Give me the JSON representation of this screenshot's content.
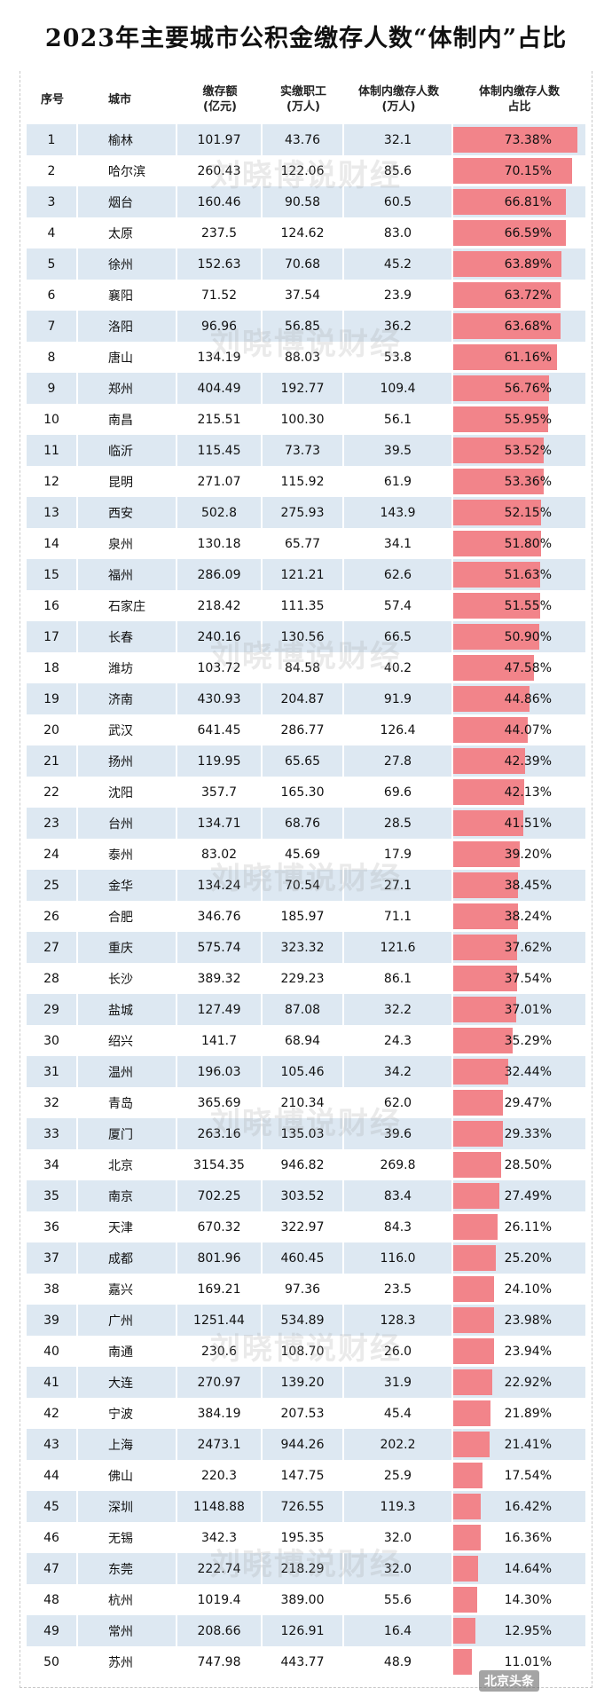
{
  "title": "2023年主要城市公积金缴存人数“体制内”占比",
  "headers": {
    "index": "序号",
    "city": "城市",
    "amount_line1": "缴存额",
    "amount_line2": "(亿元)",
    "workers_line1": "实缴职工",
    "workers_line2": "(万人)",
    "system_line1": "体制内缴存人数",
    "system_line2": "(万人)",
    "ratio_line1": "体制内缴存人数",
    "ratio_line2": "占比"
  },
  "watermark": "刘晓博说财经",
  "logo_text": "北京头条",
  "bar_color": "#f2848a",
  "stripe_color": "#dde8f2",
  "rows": [
    {
      "idx": "1",
      "city": "榆林",
      "amount": "101.97",
      "workers": "43.76",
      "system": "32.1",
      "ratio_text": "73.38%",
      "ratio": 73.38
    },
    {
      "idx": "2",
      "city": "哈尔滨",
      "amount": "260.43",
      "workers": "122.06",
      "system": "85.6",
      "ratio_text": "70.15%",
      "ratio": 70.15
    },
    {
      "idx": "3",
      "city": "烟台",
      "amount": "160.46",
      "workers": "90.58",
      "system": "60.5",
      "ratio_text": "66.81%",
      "ratio": 66.81
    },
    {
      "idx": "4",
      "city": "太原",
      "amount": "237.5",
      "workers": "124.62",
      "system": "83.0",
      "ratio_text": "66.59%",
      "ratio": 66.59
    },
    {
      "idx": "5",
      "city": "徐州",
      "amount": "152.63",
      "workers": "70.68",
      "system": "45.2",
      "ratio_text": "63.89%",
      "ratio": 63.89
    },
    {
      "idx": "6",
      "city": "襄阳",
      "amount": "71.52",
      "workers": "37.54",
      "system": "23.9",
      "ratio_text": "63.72%",
      "ratio": 63.72
    },
    {
      "idx": "7",
      "city": "洛阳",
      "amount": "96.96",
      "workers": "56.85",
      "system": "36.2",
      "ratio_text": "63.68%",
      "ratio": 63.68
    },
    {
      "idx": "8",
      "city": "唐山",
      "amount": "134.19",
      "workers": "88.03",
      "system": "53.8",
      "ratio_text": "61.16%",
      "ratio": 61.16
    },
    {
      "idx": "9",
      "city": "郑州",
      "amount": "404.49",
      "workers": "192.77",
      "system": "109.4",
      "ratio_text": "56.76%",
      "ratio": 56.76
    },
    {
      "idx": "10",
      "city": "南昌",
      "amount": "215.51",
      "workers": "100.30",
      "system": "56.1",
      "ratio_text": "55.95%",
      "ratio": 55.95
    },
    {
      "idx": "11",
      "city": "临沂",
      "amount": "115.45",
      "workers": "73.73",
      "system": "39.5",
      "ratio_text": "53.52%",
      "ratio": 53.52
    },
    {
      "idx": "12",
      "city": "昆明",
      "amount": "271.07",
      "workers": "115.92",
      "system": "61.9",
      "ratio_text": "53.36%",
      "ratio": 53.36
    },
    {
      "idx": "13",
      "city": "西安",
      "amount": "502.8",
      "workers": "275.93",
      "system": "143.9",
      "ratio_text": "52.15%",
      "ratio": 52.15
    },
    {
      "idx": "14",
      "city": "泉州",
      "amount": "130.18",
      "workers": "65.77",
      "system": "34.1",
      "ratio_text": "51.80%",
      "ratio": 51.8
    },
    {
      "idx": "15",
      "city": "福州",
      "amount": "286.09",
      "workers": "121.21",
      "system": "62.6",
      "ratio_text": "51.63%",
      "ratio": 51.63
    },
    {
      "idx": "16",
      "city": "石家庄",
      "amount": "218.42",
      "workers": "111.35",
      "system": "57.4",
      "ratio_text": "51.55%",
      "ratio": 51.55
    },
    {
      "idx": "17",
      "city": "长春",
      "amount": "240.16",
      "workers": "130.56",
      "system": "66.5",
      "ratio_text": "50.90%",
      "ratio": 50.9
    },
    {
      "idx": "18",
      "city": "潍坊",
      "amount": "103.72",
      "workers": "84.58",
      "system": "40.2",
      "ratio_text": "47.58%",
      "ratio": 47.58
    },
    {
      "idx": "19",
      "city": "济南",
      "amount": "430.93",
      "workers": "204.87",
      "system": "91.9",
      "ratio_text": "44.86%",
      "ratio": 44.86
    },
    {
      "idx": "20",
      "city": "武汉",
      "amount": "641.45",
      "workers": "286.77",
      "system": "126.4",
      "ratio_text": "44.07%",
      "ratio": 44.07
    },
    {
      "idx": "21",
      "city": "扬州",
      "amount": "119.95",
      "workers": "65.65",
      "system": "27.8",
      "ratio_text": "42.39%",
      "ratio": 42.39
    },
    {
      "idx": "22",
      "city": "沈阳",
      "amount": "357.7",
      "workers": "165.30",
      "system": "69.6",
      "ratio_text": "42.13%",
      "ratio": 42.13
    },
    {
      "idx": "23",
      "city": "台州",
      "amount": "134.71",
      "workers": "68.76",
      "system": "28.5",
      "ratio_text": "41.51%",
      "ratio": 41.51
    },
    {
      "idx": "24",
      "city": "泰州",
      "amount": "83.02",
      "workers": "45.69",
      "system": "17.9",
      "ratio_text": "39.20%",
      "ratio": 39.2
    },
    {
      "idx": "25",
      "city": "金华",
      "amount": "134.24",
      "workers": "70.54",
      "system": "27.1",
      "ratio_text": "38.45%",
      "ratio": 38.45
    },
    {
      "idx": "26",
      "city": "合肥",
      "amount": "346.76",
      "workers": "185.97",
      "system": "71.1",
      "ratio_text": "38.24%",
      "ratio": 38.24
    },
    {
      "idx": "27",
      "city": "重庆",
      "amount": "575.74",
      "workers": "323.32",
      "system": "121.6",
      "ratio_text": "37.62%",
      "ratio": 37.62
    },
    {
      "idx": "28",
      "city": "长沙",
      "amount": "389.32",
      "workers": "229.23",
      "system": "86.1",
      "ratio_text": "37.54%",
      "ratio": 37.54
    },
    {
      "idx": "29",
      "city": "盐城",
      "amount": "127.49",
      "workers": "87.08",
      "system": "32.2",
      "ratio_text": "37.01%",
      "ratio": 37.01
    },
    {
      "idx": "30",
      "city": "绍兴",
      "amount": "141.7",
      "workers": "68.94",
      "system": "24.3",
      "ratio_text": "35.29%",
      "ratio": 35.29
    },
    {
      "idx": "31",
      "city": "温州",
      "amount": "196.03",
      "workers": "105.46",
      "system": "34.2",
      "ratio_text": "32.44%",
      "ratio": 32.44
    },
    {
      "idx": "32",
      "city": "青岛",
      "amount": "365.69",
      "workers": "210.34",
      "system": "62.0",
      "ratio_text": "29.47%",
      "ratio": 29.47
    },
    {
      "idx": "33",
      "city": "厦门",
      "amount": "263.16",
      "workers": "135.03",
      "system": "39.6",
      "ratio_text": "29.33%",
      "ratio": 29.33
    },
    {
      "idx": "34",
      "city": "北京",
      "amount": "3154.35",
      "workers": "946.82",
      "system": "269.8",
      "ratio_text": "28.50%",
      "ratio": 28.5
    },
    {
      "idx": "35",
      "city": "南京",
      "amount": "702.25",
      "workers": "303.52",
      "system": "83.4",
      "ratio_text": "27.49%",
      "ratio": 27.49
    },
    {
      "idx": "36",
      "city": "天津",
      "amount": "670.32",
      "workers": "322.97",
      "system": "84.3",
      "ratio_text": "26.11%",
      "ratio": 26.11
    },
    {
      "idx": "37",
      "city": "成都",
      "amount": "801.96",
      "workers": "460.45",
      "system": "116.0",
      "ratio_text": "25.20%",
      "ratio": 25.2
    },
    {
      "idx": "38",
      "city": "嘉兴",
      "amount": "169.21",
      "workers": "97.36",
      "system": "23.5",
      "ratio_text": "24.10%",
      "ratio": 24.1
    },
    {
      "idx": "39",
      "city": "广州",
      "amount": "1251.44",
      "workers": "534.89",
      "system": "128.3",
      "ratio_text": "23.98%",
      "ratio": 23.98
    },
    {
      "idx": "40",
      "city": "南通",
      "amount": "230.6",
      "workers": "108.70",
      "system": "26.0",
      "ratio_text": "23.94%",
      "ratio": 23.94
    },
    {
      "idx": "41",
      "city": "大连",
      "amount": "270.97",
      "workers": "139.20",
      "system": "31.9",
      "ratio_text": "22.92%",
      "ratio": 22.92
    },
    {
      "idx": "42",
      "city": "宁波",
      "amount": "384.19",
      "workers": "207.53",
      "system": "45.4",
      "ratio_text": "21.89%",
      "ratio": 21.89
    },
    {
      "idx": "43",
      "city": "上海",
      "amount": "2473.1",
      "workers": "944.26",
      "system": "202.2",
      "ratio_text": "21.41%",
      "ratio": 21.41
    },
    {
      "idx": "44",
      "city": "佛山",
      "amount": "220.3",
      "workers": "147.75",
      "system": "25.9",
      "ratio_text": "17.54%",
      "ratio": 17.54
    },
    {
      "idx": "45",
      "city": "深圳",
      "amount": "1148.88",
      "workers": "726.55",
      "system": "119.3",
      "ratio_text": "16.42%",
      "ratio": 16.42
    },
    {
      "idx": "46",
      "city": "无锡",
      "amount": "342.3",
      "workers": "195.35",
      "system": "32.0",
      "ratio_text": "16.36%",
      "ratio": 16.36
    },
    {
      "idx": "47",
      "city": "东莞",
      "amount": "222.74",
      "workers": "218.29",
      "system": "32.0",
      "ratio_text": "14.64%",
      "ratio": 14.64
    },
    {
      "idx": "48",
      "city": "杭州",
      "amount": "1019.4",
      "workers": "389.00",
      "system": "55.6",
      "ratio_text": "14.30%",
      "ratio": 14.3
    },
    {
      "idx": "49",
      "city": "常州",
      "amount": "208.66",
      "workers": "126.91",
      "system": "16.4",
      "ratio_text": "12.95%",
      "ratio": 12.95
    },
    {
      "idx": "50",
      "city": "苏州",
      "amount": "747.98",
      "workers": "443.77",
      "system": "48.9",
      "ratio_text": "11.01%",
      "ratio": 11.01
    }
  ]
}
